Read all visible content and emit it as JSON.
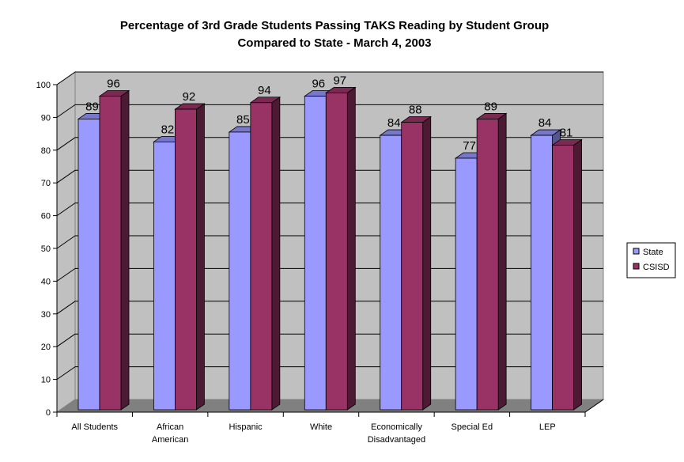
{
  "chart_data": {
    "type": "bar",
    "title": [
      "Percentage of 3rd Grade Students Passing TAKS Reading by Student Group",
      "Compared to State - March 4, 2003"
    ],
    "categories": [
      [
        "All Students"
      ],
      [
        "African",
        "American"
      ],
      [
        "Hispanic"
      ],
      [
        "White"
      ],
      [
        "Economically",
        "Disadvantaged"
      ],
      [
        "Special Ed"
      ],
      [
        "LEP"
      ]
    ],
    "series": [
      {
        "name": "State",
        "values": [
          89,
          82,
          85,
          96,
          84,
          77,
          84
        ],
        "color": "#9999FF",
        "top": "#7777CC",
        "side": "#55558F"
      },
      {
        "name": "CSISD",
        "values": [
          96,
          92,
          94,
          97,
          88,
          89,
          81
        ],
        "color": "#993366",
        "top": "#7A2952",
        "side": "#4D1A33"
      }
    ],
    "yticks": [
      0,
      10,
      20,
      30,
      40,
      50,
      60,
      70,
      80,
      90,
      100
    ],
    "ylim": [
      0,
      100
    ],
    "grid": true,
    "legend": "right",
    "xlabel": "",
    "ylabel": ""
  }
}
